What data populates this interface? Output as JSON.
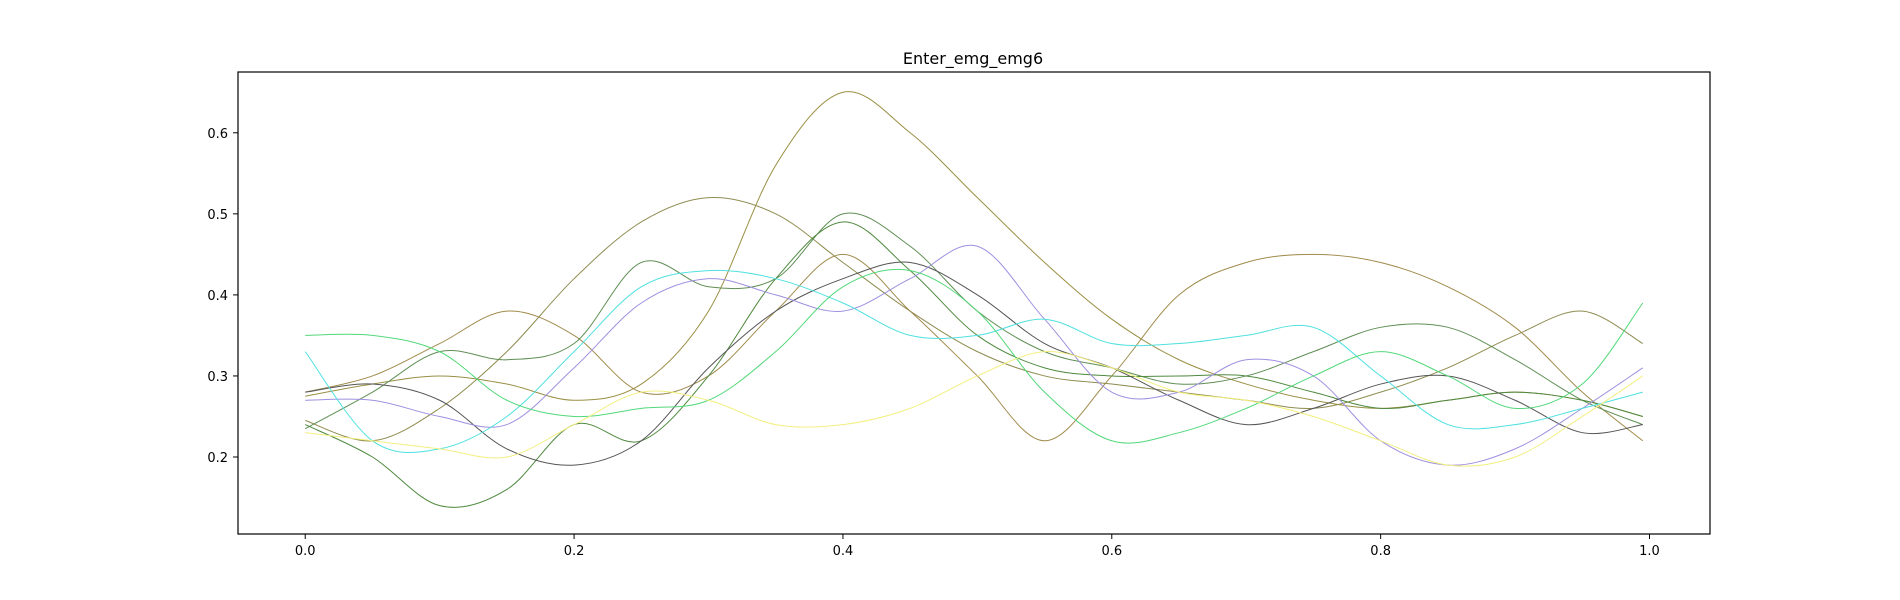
{
  "chart_data": {
    "type": "line",
    "title": "Enter_emg_emg6",
    "xlabel": "",
    "ylabel": "",
    "xlim": [
      -0.05,
      1.045
    ],
    "ylim": [
      0.105,
      0.675
    ],
    "xticks": [
      0.0,
      0.2,
      0.4,
      0.6,
      0.8,
      1.0
    ],
    "xtick_labels": [
      "0.0",
      "0.2",
      "0.4",
      "0.6",
      "0.8",
      "1.0"
    ],
    "yticks": [
      0.2,
      0.3,
      0.4,
      0.5,
      0.6
    ],
    "ytick_labels": [
      "0.2",
      "0.3",
      "0.4",
      "0.5",
      "0.6"
    ],
    "grid": false,
    "legend": "none",
    "x": [
      0.0,
      0.05,
      0.1,
      0.15,
      0.2,
      0.25,
      0.3,
      0.35,
      0.4,
      0.45,
      0.5,
      0.55,
      0.6,
      0.65,
      0.7,
      0.75,
      0.8,
      0.85,
      0.9,
      0.95,
      0.995
    ],
    "series": [
      {
        "color": "#8f8c50",
        "values": [
          0.245,
          0.22,
          0.26,
          0.33,
          0.42,
          0.49,
          0.52,
          0.5,
          0.44,
          0.38,
          0.33,
          0.3,
          0.29,
          0.28,
          0.27,
          0.26,
          0.28,
          0.31,
          0.35,
          0.38,
          0.34
        ]
      },
      {
        "color": "#9a8f44",
        "values": [
          0.275,
          0.29,
          0.3,
          0.29,
          0.27,
          0.29,
          0.38,
          0.56,
          0.65,
          0.6,
          0.52,
          0.44,
          0.37,
          0.32,
          0.29,
          0.27,
          0.26,
          0.27,
          0.28,
          0.27,
          0.25
        ]
      },
      {
        "color": "#a08b4c",
        "values": [
          0.28,
          0.3,
          0.34,
          0.38,
          0.35,
          0.28,
          0.3,
          0.38,
          0.45,
          0.38,
          0.3,
          0.22,
          0.3,
          0.4,
          0.44,
          0.45,
          0.44,
          0.41,
          0.36,
          0.28,
          0.22
        ]
      },
      {
        "color": "#5f8f55",
        "values": [
          0.235,
          0.28,
          0.33,
          0.32,
          0.34,
          0.44,
          0.41,
          0.42,
          0.5,
          0.46,
          0.38,
          0.33,
          0.31,
          0.29,
          0.3,
          0.33,
          0.36,
          0.36,
          0.32,
          0.27,
          0.24
        ]
      },
      {
        "color": "#4f8a3f",
        "values": [
          0.24,
          0.2,
          0.14,
          0.16,
          0.24,
          0.22,
          0.3,
          0.42,
          0.49,
          0.43,
          0.35,
          0.31,
          0.3,
          0.3,
          0.3,
          0.28,
          0.26,
          0.27,
          0.28,
          0.27,
          0.25
        ]
      },
      {
        "color": "#555555",
        "values": [
          0.28,
          0.29,
          0.27,
          0.21,
          0.19,
          0.22,
          0.31,
          0.38,
          0.42,
          0.44,
          0.4,
          0.34,
          0.31,
          0.27,
          0.24,
          0.26,
          0.29,
          0.3,
          0.27,
          0.23,
          0.24
        ]
      },
      {
        "color": "#9f8fe0",
        "values": [
          0.27,
          0.27,
          0.25,
          0.24,
          0.31,
          0.39,
          0.42,
          0.4,
          0.38,
          0.42,
          0.46,
          0.37,
          0.28,
          0.28,
          0.32,
          0.3,
          0.22,
          0.19,
          0.21,
          0.26,
          0.31
        ]
      },
      {
        "color": "#50e0e0",
        "values": [
          0.33,
          0.22,
          0.21,
          0.25,
          0.33,
          0.41,
          0.43,
          0.42,
          0.39,
          0.35,
          0.35,
          0.37,
          0.34,
          0.34,
          0.35,
          0.36,
          0.3,
          0.24,
          0.24,
          0.26,
          0.28
        ]
      },
      {
        "color": "#52d87a",
        "values": [
          0.35,
          0.35,
          0.33,
          0.27,
          0.25,
          0.26,
          0.27,
          0.33,
          0.41,
          0.43,
          0.38,
          0.28,
          0.22,
          0.23,
          0.26,
          0.3,
          0.33,
          0.3,
          0.26,
          0.29,
          0.39
        ]
      },
      {
        "color": "#f2ef80",
        "values": [
          0.23,
          0.22,
          0.21,
          0.2,
          0.24,
          0.28,
          0.27,
          0.24,
          0.24,
          0.26,
          0.3,
          0.33,
          0.31,
          0.28,
          0.27,
          0.25,
          0.22,
          0.19,
          0.2,
          0.25,
          0.3
        ]
      }
    ]
  }
}
